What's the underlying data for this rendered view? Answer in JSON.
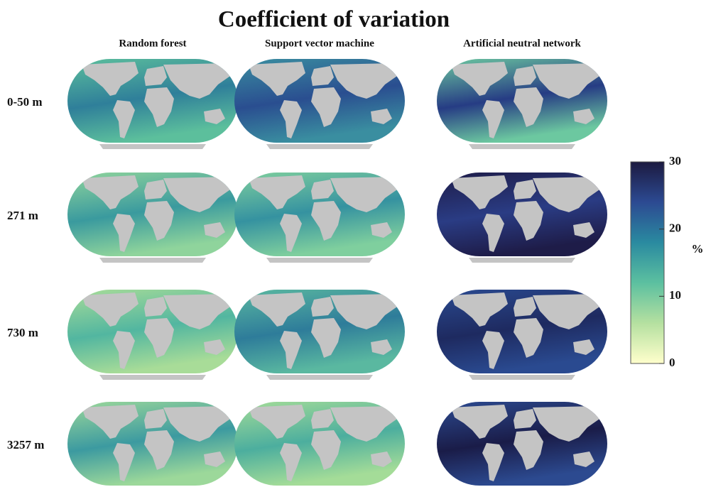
{
  "title": "Coefficient of variation",
  "columns": [
    "Random forest",
    "Support vector machine",
    "Artificial neutral network"
  ],
  "rows": [
    "0-50 m",
    "271 m",
    "730 m",
    "3257 m"
  ],
  "colorbar": {
    "lim": [
      0,
      30
    ],
    "ticks": [
      0,
      10,
      20,
      30
    ],
    "unit": "%"
  }
}
